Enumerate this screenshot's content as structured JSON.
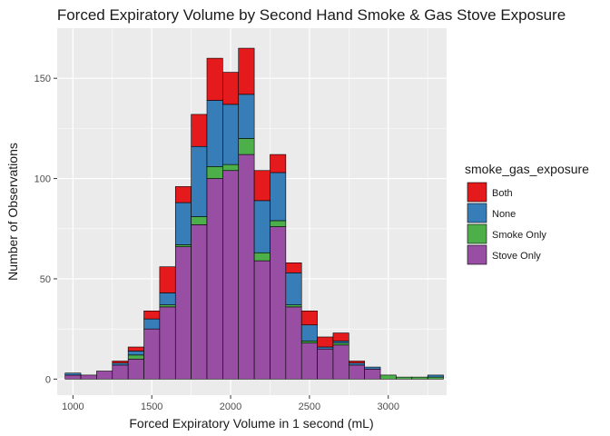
{
  "chart_data": {
    "type": "bar",
    "stacked": true,
    "title": "Forced Expiratory Volume by Second Hand Smoke & Gas Stove Exposure",
    "xlabel": "Forced Expiratory Volume in 1 second (mL)",
    "ylabel": "Number of Observations",
    "xlim": [
      900,
      3370
    ],
    "ylim": [
      -8,
      175
    ],
    "xticks": [
      1000,
      1500,
      2000,
      2500,
      3000
    ],
    "yticks": [
      0,
      50,
      100,
      150
    ],
    "grid": true,
    "bin_width": 100,
    "bins": [
      1000,
      1100,
      1200,
      1300,
      1400,
      1500,
      1600,
      1700,
      1800,
      1900,
      2000,
      2100,
      2200,
      2300,
      2400,
      2500,
      2600,
      2700,
      2800,
      2900,
      3000,
      3100,
      3200,
      3300
    ],
    "series": [
      {
        "name": "Stove Only",
        "color": "#984EA3",
        "values": [
          2,
          2,
          4,
          7,
          10,
          25,
          36,
          66,
          77,
          100,
          104,
          112,
          59,
          76,
          36,
          18,
          15,
          17,
          7,
          5,
          0,
          0,
          0,
          0
        ]
      },
      {
        "name": "Smoke Only",
        "color": "#4DAF4A",
        "values": [
          0,
          0,
          0,
          0,
          2,
          0,
          1,
          1,
          4,
          6,
          3,
          8,
          4,
          3,
          1,
          1,
          0,
          1,
          0,
          0,
          2,
          1,
          1,
          1
        ]
      },
      {
        "name": "None",
        "color": "#377EB8",
        "values": [
          1,
          0,
          0,
          1,
          2,
          5,
          6,
          21,
          35,
          33,
          30,
          22,
          26,
          24,
          16,
          8,
          1,
          1,
          1,
          1,
          0,
          0,
          0,
          1
        ]
      },
      {
        "name": "Both",
        "color": "#E41A1C",
        "values": [
          0,
          0,
          0,
          1,
          2,
          4,
          13,
          8,
          16,
          21,
          16,
          23,
          15,
          9,
          5,
          7,
          5,
          4,
          1,
          0,
          0,
          0,
          0,
          0
        ]
      }
    ],
    "legend": {
      "title": "smoke_gas_exposure",
      "placement": "right",
      "entries": [
        "Both",
        "None",
        "Smoke Only",
        "Stove Only"
      ]
    },
    "colors": {
      "panel_background": "#EBEBEB",
      "grid": "#FFFFFF",
      "bar_outline": "#000000"
    }
  }
}
